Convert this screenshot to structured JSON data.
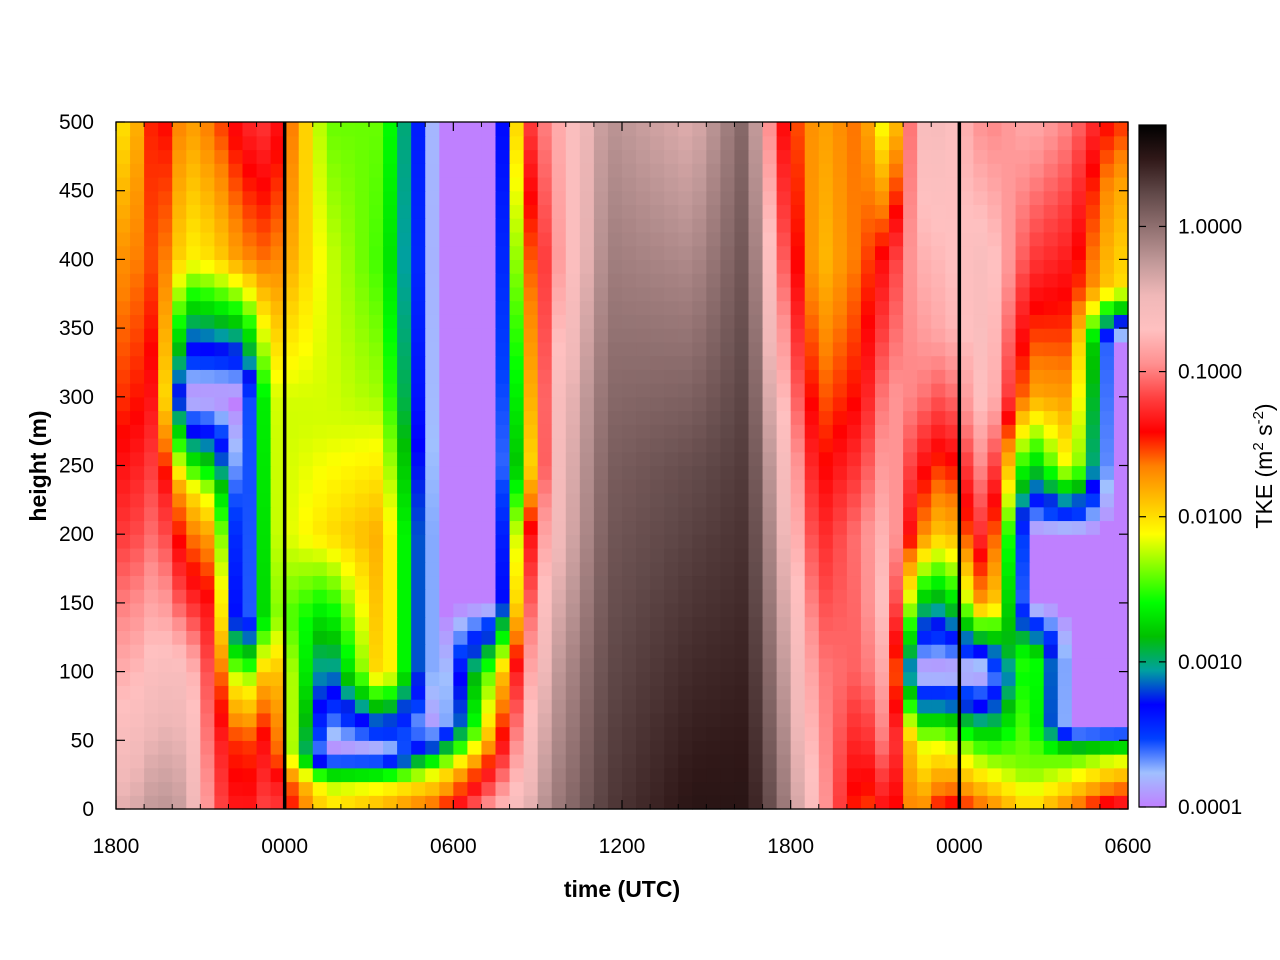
{
  "chart_data": {
    "type": "heatmap",
    "title": "",
    "xlabel": "time (UTC)",
    "ylabel": "height (m)",
    "colorbar_label_main": "TKE (m",
    "colorbar_label_sup1": "2",
    "colorbar_label_mid": " s",
    "colorbar_label_sup2": "-2",
    "colorbar_label_end": ")",
    "x_tick_labels": [
      "1800",
      "0000",
      "0600",
      "1200",
      "1800",
      "0000",
      "0600"
    ],
    "x_tick_hours": [
      0,
      6,
      12,
      18,
      24,
      30,
      36
    ],
    "x_range_hours": [
      0,
      36
    ],
    "midnight_lines_hours": [
      6,
      30
    ],
    "y_ticks": [
      0,
      50,
      100,
      150,
      200,
      250,
      300,
      350,
      400,
      450,
      500
    ],
    "ylim": [
      0,
      500
    ],
    "colorbar": {
      "scale": "log",
      "range": [
        0.0001,
        5.0
      ],
      "tick_labels": [
        "0.0001",
        "0.0010",
        "0.0100",
        "0.1000",
        "1.0000"
      ],
      "tick_values": [
        0.0001,
        0.001,
        0.01,
        0.1,
        1.0
      ],
      "palette": [
        "#bf80ff",
        "#a0c0ff",
        "#0040ff",
        "#0000ff",
        "#00a0a0",
        "#00c000",
        "#00ff00",
        "#80ff00",
        "#ffff00",
        "#ffc000",
        "#ff8000",
        "#ff0000",
        "#ff4040",
        "#ff9090",
        "#ffc0c0",
        "#f0b8b8",
        "#c09898",
        "#907070",
        "#604848",
        "#301818",
        "#000000"
      ]
    },
    "no_data_color": "#bf80ff",
    "profiles_log10_tke": [
      {
        "t_hours": 0.5,
        "heights": [
          0,
          100,
          200,
          300,
          400,
          500
        ],
        "values": [
          -0.4,
          -0.8,
          -1.2,
          -1.5,
          -1.7,
          -2.0
        ]
      },
      {
        "t_hours": 1.5,
        "heights": [
          0,
          100,
          200,
          300,
          400,
          500
        ],
        "values": [
          -0.2,
          -0.6,
          -1.0,
          -1.3,
          -1.5,
          -1.3
        ]
      },
      {
        "t_hours": 2.5,
        "heights": [
          0,
          100,
          150,
          200,
          230,
          300,
          400,
          500
        ],
        "values": [
          -0.3,
          -0.6,
          -1.2,
          -1.6,
          -1.9,
          -4,
          -2.1,
          -1.8
        ]
      },
      {
        "t_hours": 3.5,
        "heights": [
          0,
          50,
          150,
          200,
          230,
          300,
          400,
          500
        ],
        "values": [
          -1.1,
          -1.2,
          -1.4,
          -1.8,
          -2.3,
          -4,
          -2.0,
          -1.6
        ]
      },
      {
        "t_hours": 4.5,
        "heights": [
          0,
          50,
          90,
          140,
          300,
          400,
          500
        ],
        "values": [
          -1.4,
          -1.6,
          -2.3,
          -4,
          -4,
          -1.7,
          -1.3
        ]
      },
      {
        "t_hours": 5.5,
        "heights": [
          0,
          50,
          100,
          140,
          300,
          400,
          500
        ],
        "values": [
          -1.1,
          -1.3,
          -1.7,
          -2.3,
          -2.2,
          -1.6,
          -1.2
        ]
      },
      {
        "t_hours": 7.5,
        "heights": [
          0,
          20,
          40,
          200,
          280,
          400,
          500
        ],
        "values": [
          -2.0,
          -2.3,
          -4,
          -2.0,
          -2.2,
          -2.2,
          -2.4
        ]
      },
      {
        "t_hours": 9.5,
        "heights": [
          0,
          20,
          40,
          100,
          200,
          300,
          400,
          500
        ],
        "values": [
          -1.8,
          -2.2,
          -4,
          -1.8,
          -1.8,
          -2.3,
          -2.5,
          -2.4
        ]
      },
      {
        "t_hours": 11.5,
        "heights": [
          0,
          30,
          60,
          500
        ],
        "values": [
          -1.5,
          -2.2,
          -4,
          -4
        ]
      },
      {
        "t_hours": 13.5,
        "heights": [
          0,
          50,
          100,
          150,
          500
        ],
        "values": [
          -0.8,
          -1.6,
          -2.2,
          -4,
          -4
        ]
      },
      {
        "t_hours": 14.5,
        "heights": [
          0,
          100,
          200,
          250,
          350,
          500
        ],
        "values": [
          -0.5,
          -1.0,
          -1.6,
          -2.4,
          -2.0,
          -1.3
        ]
      },
      {
        "t_hours": 15.5,
        "heights": [
          0,
          100,
          200,
          300,
          400,
          500
        ],
        "values": [
          -0.1,
          -0.3,
          -0.6,
          -0.7,
          -1.0,
          -0.9
        ]
      },
      {
        "t_hours": 17.5,
        "heights": [
          0,
          250,
          500
        ],
        "values": [
          0.3,
          0.1,
          -0.2
        ]
      },
      {
        "t_hours": 20.5,
        "heights": [
          0,
          250,
          500
        ],
        "values": [
          0.5,
          0.2,
          -0.4
        ]
      },
      {
        "t_hours": 22.5,
        "heights": [
          0,
          250,
          500
        ],
        "values": [
          0.5,
          0.3,
          0.1
        ]
      },
      {
        "t_hours": 23.5,
        "heights": [
          0,
          250,
          500
        ],
        "values": [
          0.1,
          -0.4,
          -1.3
        ]
      },
      {
        "t_hours": 25.0,
        "heights": [
          0,
          100,
          200,
          300,
          400,
          500
        ],
        "values": [
          -0.8,
          -1.0,
          -1.3,
          -1.6,
          -1.9,
          -1.8
        ]
      },
      {
        "t_hours": 26.5,
        "heights": [
          0,
          100,
          200,
          300,
          400,
          500
        ],
        "values": [
          -1.6,
          -1.1,
          -1.0,
          -1.4,
          -1.6,
          -1.6
        ]
      },
      {
        "t_hours": 27.5,
        "heights": [
          0,
          50,
          150,
          300,
          400,
          500
        ],
        "values": [
          -1.3,
          -0.9,
          -0.6,
          -0.9,
          -1.3,
          -2.3
        ]
      },
      {
        "t_hours": 28.5,
        "heights": [
          0,
          50,
          100,
          200,
          300,
          400,
          500
        ],
        "values": [
          -1.8,
          -2.2,
          -4,
          -1.6,
          -1.0,
          -0.8,
          -0.6
        ]
      },
      {
        "t_hours": 29.5,
        "heights": [
          0,
          50,
          100,
          200,
          280,
          350,
          500
        ],
        "values": [
          -1.3,
          -2.2,
          -4,
          -2.0,
          -1.3,
          -0.8,
          -0.6
        ]
      },
      {
        "t_hours": 31.0,
        "heights": [
          0,
          40,
          100,
          150,
          200,
          300,
          400,
          500
        ],
        "values": [
          -1.6,
          -2.4,
          -4,
          -1.5,
          -1.1,
          -0.6,
          -0.6,
          -1.0
        ]
      },
      {
        "t_hours": 32.5,
        "heights": [
          0,
          30,
          110,
          150,
          200,
          300,
          400,
          500
        ],
        "values": [
          -2.0,
          -2.4,
          -2.3,
          -4,
          -4,
          -1.8,
          -1.2,
          -0.8
        ]
      },
      {
        "t_hours": 34.0,
        "heights": [
          0,
          40,
          60,
          200,
          250,
          350,
          500
        ],
        "values": [
          -1.6,
          -2.5,
          -4,
          -4,
          -2.0,
          -1.5,
          -1.0
        ]
      },
      {
        "t_hours": 35.5,
        "heights": [
          0,
          40,
          60,
          340,
          380,
          450,
          500
        ],
        "values": [
          -1.2,
          -2.3,
          -4,
          -4,
          -2.0,
          -1.8,
          -1.5
        ]
      }
    ]
  }
}
